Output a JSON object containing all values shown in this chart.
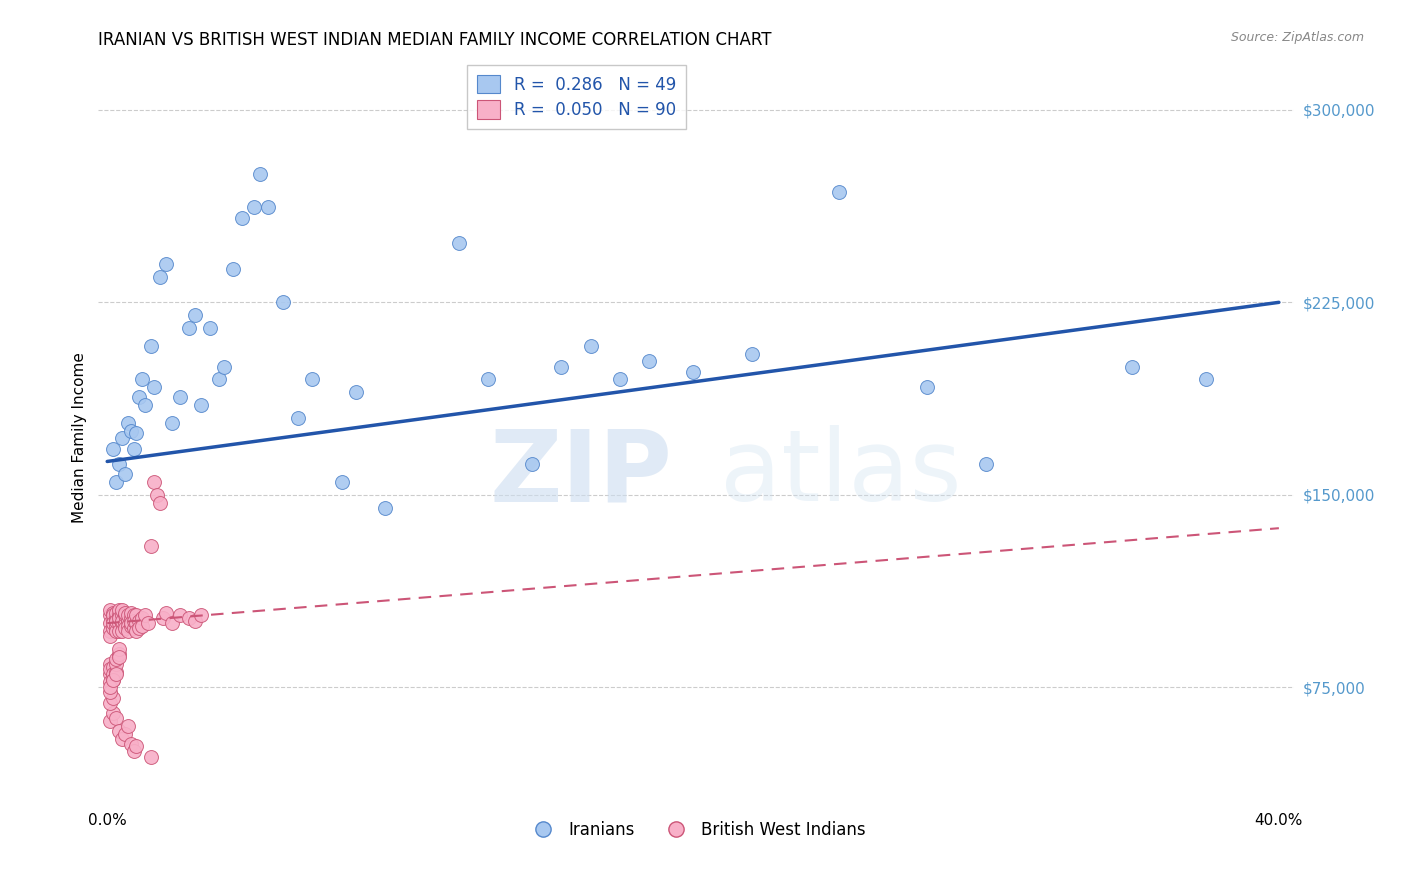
{
  "title": "IRANIAN VS BRITISH WEST INDIAN MEDIAN FAMILY INCOME CORRELATION CHART",
  "source": "Source: ZipAtlas.com",
  "ylabel": "Median Family Income",
  "y_ticks": [
    75000,
    150000,
    225000,
    300000
  ],
  "y_tick_labels": [
    "$75,000",
    "$150,000",
    "$225,000",
    "$300,000"
  ],
  "ylim": [
    30000,
    315000
  ],
  "xlim": [
    -0.003,
    0.405
  ],
  "x_ticks": [
    0.0,
    0.05,
    0.1,
    0.15,
    0.2,
    0.25,
    0.3,
    0.35,
    0.4
  ],
  "x_tick_labels": [
    "0.0%",
    "",
    "",
    "",
    "",
    "",
    "",
    "",
    "40.0%"
  ],
  "iranian_R": 0.286,
  "iranian_N": 49,
  "bwi_R": 0.05,
  "bwi_N": 90,
  "watermark_zip": "ZIP",
  "watermark_atlas": "atlas",
  "iranian_color": "#a8c8f0",
  "iranian_edge_color": "#5588cc",
  "iranian_line_color": "#2255aa",
  "bwi_color": "#f8b0c8",
  "bwi_edge_color": "#cc5577",
  "bwi_line_color": "#cc5577",
  "background_color": "#ffffff",
  "grid_color": "#cccccc",
  "title_fontsize": 12,
  "axis_label_fontsize": 11,
  "tick_fontsize": 11,
  "legend_fontsize": 12,
  "ytick_color": "#5599cc",
  "iranian_trend_x0": 0.0,
  "iranian_trend_y0": 163000,
  "iranian_trend_x1": 0.4,
  "iranian_trend_y1": 225000,
  "bwi_trend_x0": 0.0,
  "bwi_trend_y0": 100000,
  "bwi_trend_x1": 0.4,
  "bwi_trend_y1": 137000,
  "iranian_x": [
    0.002,
    0.003,
    0.004,
    0.005,
    0.006,
    0.007,
    0.008,
    0.009,
    0.01,
    0.011,
    0.012,
    0.013,
    0.015,
    0.016,
    0.018,
    0.02,
    0.022,
    0.025,
    0.028,
    0.03,
    0.032,
    0.035,
    0.038,
    0.04,
    0.043,
    0.046,
    0.05,
    0.052,
    0.055,
    0.06,
    0.065,
    0.07,
    0.08,
    0.085,
    0.095,
    0.12,
    0.13,
    0.145,
    0.155,
    0.165,
    0.175,
    0.185,
    0.2,
    0.22,
    0.25,
    0.28,
    0.3,
    0.35,
    0.375
  ],
  "iranian_y": [
    168000,
    155000,
    162000,
    172000,
    158000,
    178000,
    175000,
    168000,
    174000,
    188000,
    195000,
    185000,
    208000,
    192000,
    235000,
    240000,
    178000,
    188000,
    215000,
    220000,
    185000,
    215000,
    195000,
    200000,
    238000,
    258000,
    262000,
    275000,
    262000,
    225000,
    180000,
    195000,
    155000,
    190000,
    145000,
    248000,
    195000,
    162000,
    200000,
    208000,
    195000,
    202000,
    198000,
    205000,
    268000,
    192000,
    162000,
    200000,
    195000
  ],
  "bwi_x": [
    0.001,
    0.001,
    0.001,
    0.001,
    0.001,
    0.002,
    0.002,
    0.002,
    0.002,
    0.002,
    0.003,
    0.003,
    0.003,
    0.003,
    0.003,
    0.004,
    0.004,
    0.004,
    0.004,
    0.004,
    0.005,
    0.005,
    0.005,
    0.005,
    0.005,
    0.006,
    0.006,
    0.006,
    0.006,
    0.007,
    0.007,
    0.007,
    0.007,
    0.008,
    0.008,
    0.008,
    0.008,
    0.009,
    0.009,
    0.009,
    0.01,
    0.01,
    0.01,
    0.011,
    0.011,
    0.012,
    0.012,
    0.013,
    0.014,
    0.015,
    0.016,
    0.017,
    0.018,
    0.019,
    0.02,
    0.022,
    0.025,
    0.028,
    0.03,
    0.032,
    0.001,
    0.001,
    0.001,
    0.001,
    0.002,
    0.002,
    0.002,
    0.003,
    0.003,
    0.003,
    0.004,
    0.004,
    0.004,
    0.001,
    0.002,
    0.003,
    0.001,
    0.002,
    0.001,
    0.001,
    0.002,
    0.003,
    0.004,
    0.005,
    0.006,
    0.007,
    0.008,
    0.009,
    0.01,
    0.015
  ],
  "bwi_y": [
    103000,
    100000,
    97000,
    95000,
    105000,
    104000,
    101000,
    98000,
    103000,
    100000,
    102000,
    99000,
    104000,
    97000,
    101000,
    103000,
    100000,
    97000,
    105000,
    102000,
    100000,
    103000,
    97000,
    105000,
    101000,
    100000,
    103000,
    98000,
    104000,
    101000,
    99000,
    103000,
    97000,
    102000,
    99000,
    104000,
    100000,
    103000,
    98000,
    101000,
    100000,
    103000,
    97000,
    101000,
    98000,
    102000,
    99000,
    103000,
    100000,
    130000,
    155000,
    150000,
    147000,
    102000,
    104000,
    100000,
    103000,
    102000,
    101000,
    103000,
    84000,
    80000,
    77000,
    82000,
    83000,
    80000,
    78000,
    81000,
    84000,
    86000,
    88000,
    90000,
    87000,
    62000,
    65000,
    63000,
    69000,
    71000,
    73000,
    75000,
    78000,
    80000,
    58000,
    55000,
    57000,
    60000,
    53000,
    50000,
    52000,
    48000
  ]
}
